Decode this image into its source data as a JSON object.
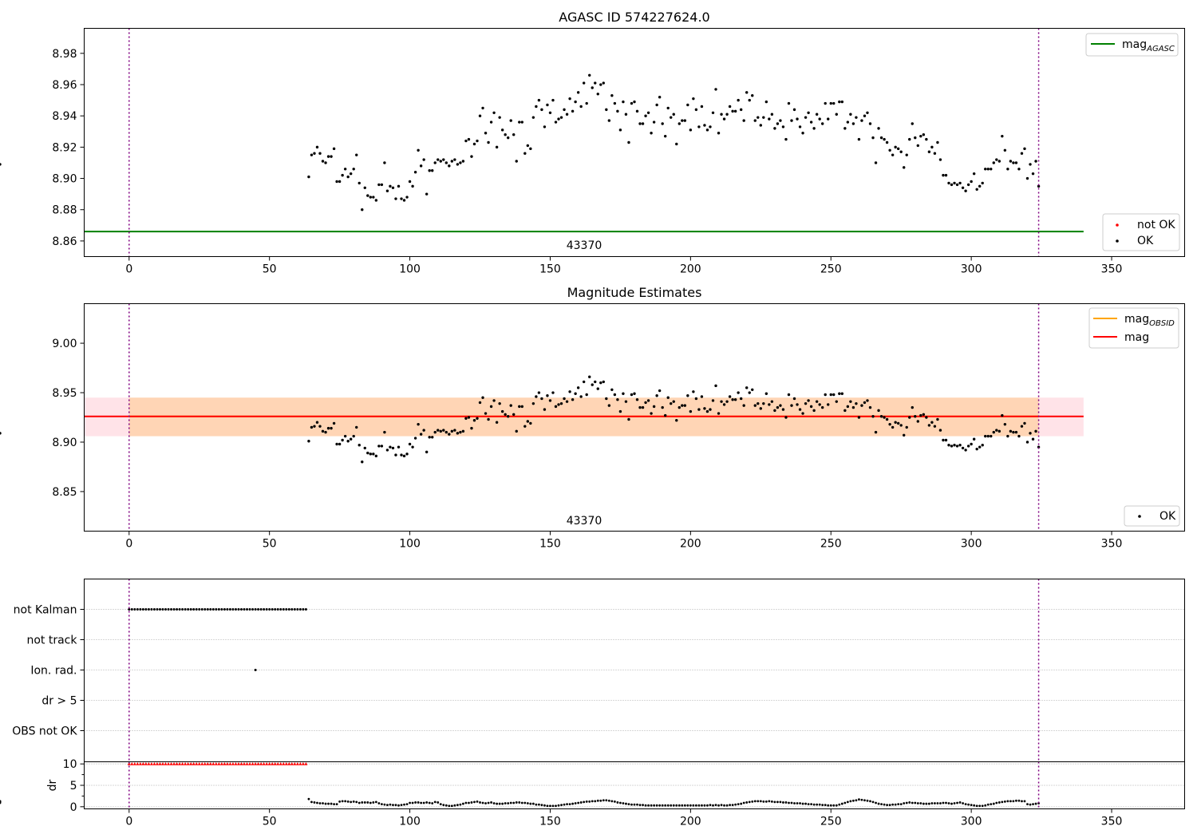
{
  "chart_data": [
    {
      "type": "scatter",
      "title": "AGASC ID 574227624.0",
      "xlim": [
        -16,
        376
      ],
      "ylim": [
        8.85,
        8.996
      ],
      "xticks": [
        0,
        50,
        100,
        150,
        200,
        250,
        300,
        350
      ],
      "yticks": [
        8.86,
        8.88,
        8.9,
        8.92,
        8.94,
        8.96,
        8.98
      ],
      "vlines": [
        0,
        324
      ],
      "hline": {
        "label": "mag_AGASC",
        "y": 8.866,
        "x_range": [
          -16,
          340
        ],
        "color": "#008000"
      },
      "annotation": "43370",
      "legend_top": [
        {
          "label": "mag",
          "subscript": "AGASC",
          "color": "#008000"
        }
      ],
      "legend_bottom": [
        {
          "label": "not OK",
          "color": "#ff0000"
        },
        {
          "label": "OK",
          "color": "#000000"
        }
      ],
      "series": [
        {
          "name": "OK",
          "x_start": 64,
          "x_end": 324,
          "dx": 1,
          "y": [
            8.901,
            8.915,
            8.916,
            8.92,
            8.916,
            8.911,
            8.91,
            8.914,
            8.914,
            8.919,
            8.898,
            8.898,
            8.902,
            8.906,
            8.901,
            8.903,
            8.906,
            8.915,
            8.897,
            8.88,
            8.894,
            8.889,
            8.888,
            8.888,
            8.886,
            8.896,
            8.896,
            8.91,
            8.892,
            8.895,
            8.894,
            8.887,
            8.895,
            8.887,
            8.886,
            8.888,
            8.898,
            8.895,
            8.904,
            8.918,
            8.908,
            8.912,
            8.89,
            8.905,
            8.905,
            8.91,
            8.912,
            8.911,
            8.912,
            8.91,
            8.908,
            8.911,
            8.912,
            8.909,
            8.91,
            8.911,
            8.924,
            8.925,
            8.914,
            8.922,
            8.924,
            8.94,
            8.945,
            8.929,
            8.923,
            8.936,
            8.942,
            8.92,
            8.939,
            8.931,
            8.928,
            8.926,
            8.937,
            8.928,
            8.911,
            8.936,
            8.936,
            8.916,
            8.921,
            8.919,
            8.939,
            8.946,
            8.95,
            8.944,
            8.933,
            8.947,
            8.942,
            8.95,
            8.936,
            8.938,
            8.939,
            8.944,
            8.941,
            8.951,
            8.943,
            8.949,
            8.955,
            8.946,
            8.961,
            8.948,
            8.966,
            8.958,
            8.961,
            8.954,
            8.96,
            8.961,
            8.944,
            8.937,
            8.953,
            8.948,
            8.943,
            8.931,
            8.949,
            8.941,
            8.923,
            8.948,
            8.949,
            8.943,
            8.935,
            8.935,
            8.94,
            8.942,
            8.929,
            8.936,
            8.947,
            8.952,
            8.935,
            8.927,
            8.945,
            8.939,
            8.941,
            8.922,
            8.935,
            8.937,
            8.937,
            8.947,
            8.931,
            8.951,
            8.944,
            8.933,
            8.946,
            8.934,
            8.931,
            8.933,
            8.942,
            8.957,
            8.929,
            8.941,
            8.938,
            8.941,
            8.946,
            8.943,
            8.943,
            8.95,
            8.944,
            8.937,
            8.955,
            8.95,
            8.953,
            8.937,
            8.939,
            8.934,
            8.939,
            8.949,
            8.938,
            8.941,
            8.932,
            8.935,
            8.937,
            8.933,
            8.925,
            8.948,
            8.937,
            8.944,
            8.938,
            8.933,
            8.929,
            8.939,
            8.942,
            8.936,
            8.932,
            8.941,
            8.938,
            8.935,
            8.948,
            8.938,
            8.948,
            8.948,
            8.941,
            8.949,
            8.949,
            8.932,
            8.936,
            8.941,
            8.935,
            8.939,
            8.925,
            8.937,
            8.94,
            8.942,
            8.935,
            8.926,
            8.91,
            8.932,
            8.926,
            8.925,
            8.923,
            8.918,
            8.915,
            8.92,
            8.919,
            8.917,
            8.907,
            8.915,
            8.925,
            8.935,
            8.926,
            8.921,
            8.927,
            8.928,
            8.925,
            8.917,
            8.92,
            8.916,
            8.923,
            8.912,
            8.902,
            8.902,
            8.897,
            8.896,
            8.897,
            8.896,
            8.897,
            8.894,
            8.892,
            8.896,
            8.898,
            8.903,
            8.893,
            8.895,
            8.897,
            8.906,
            8.906,
            8.906,
            8.91,
            8.912,
            8.911,
            8.927,
            8.918,
            8.906,
            8.911,
            8.91,
            8.91,
            8.906,
            8.916,
            8.919,
            8.9,
            8.909,
            8.903,
            8.911,
            8.895,
            8.909
          ]
        }
      ]
    },
    {
      "type": "scatter",
      "title": "Magnitude Estimates",
      "xlim": [
        -16,
        376
      ],
      "ylim": [
        8.81,
        9.04
      ],
      "xticks": [
        0,
        50,
        100,
        150,
        200,
        250,
        300,
        350
      ],
      "yticks": [
        8.85,
        8.9,
        8.95,
        9.0
      ],
      "vlines": [
        0,
        324
      ],
      "bands": [
        {
          "label": "mag band",
          "y0": 8.906,
          "y1": 8.945,
          "x_range": [
            -16,
            340
          ],
          "color": "#ffc0cb",
          "alpha": 0.45
        },
        {
          "label": "mag_OBSID band",
          "y0": 8.906,
          "y1": 8.945,
          "x_range": [
            0,
            324
          ],
          "color": "#ffa500",
          "alpha": 0.22
        }
      ],
      "hlines": [
        {
          "label": "mag_OBSID",
          "y": 8.926,
          "x_range": [
            0,
            324
          ],
          "color": "#ffa500"
        },
        {
          "label": "mag",
          "y": 8.926,
          "x_range": [
            -16,
            340
          ],
          "color": "#ff0000"
        }
      ],
      "annotation": "43370",
      "legend_top": [
        {
          "label": "mag",
          "subscript": "OBSID",
          "color": "#ffa500"
        },
        {
          "label": "mag",
          "subscript": "",
          "color": "#ff0000"
        }
      ],
      "legend_bottom": [
        {
          "label": "OK",
          "color": "#000000"
        }
      ],
      "series": [
        {
          "name": "OK",
          "same_as": "AGASC ID 574227624.0"
        }
      ]
    },
    {
      "type": "scatter",
      "title": "",
      "xlim": [
        -16,
        376
      ],
      "xticks": [
        0,
        50,
        100,
        150,
        200,
        250,
        300,
        350
      ],
      "vlines": [
        0,
        324
      ],
      "categories": [
        "not Kalman",
        "not track",
        "Ion. rad.",
        "dr > 5",
        "OBS not OK"
      ],
      "flags": [
        {
          "category": "not Kalman",
          "x_start": 0,
          "x_end": 63,
          "dx": 1
        },
        {
          "category": "Ion. rad.",
          "x": [
            45
          ]
        }
      ]
    },
    {
      "type": "scatter",
      "title": "",
      "ylabel": "dr",
      "xlim": [
        -16,
        376
      ],
      "ylim": [
        -0.5,
        10.5
      ],
      "xticks": [
        0,
        50,
        100,
        150,
        200,
        250,
        300,
        350
      ],
      "yticks": [
        0,
        5,
        10
      ],
      "vlines": [
        0,
        324
      ],
      "series": [
        {
          "name": "not OK",
          "color": "#ff0000",
          "x_start": 0,
          "x_end": 63,
          "dx": 1,
          "y_const": 10,
          "marker": "triangle"
        },
        {
          "name": "OK",
          "color": "#000000",
          "x_start": 64,
          "x_end": 324,
          "dx": 1,
          "y": [
            1.8,
            1.1,
            1.0,
            0.9,
            0.8,
            0.8,
            0.7,
            0.7,
            0.7,
            0.6,
            0.6,
            1.2,
            1.3,
            1.3,
            1.2,
            1.1,
            1.2,
            1.1,
            0.9,
            1.0,
            1.0,
            1.0,
            0.9,
            1.0,
            1.1,
            0.8,
            0.6,
            0.5,
            0.4,
            0.5,
            0.4,
            0.4,
            0.3,
            0.4,
            0.5,
            0.6,
            0.9,
            0.9,
            1.0,
            1.0,
            0.9,
            0.9,
            1.0,
            0.9,
            0.8,
            1.1,
            1.0,
            0.6,
            0.4,
            0.3,
            0.2,
            0.2,
            0.3,
            0.4,
            0.5,
            0.7,
            0.9,
            0.9,
            1.0,
            1.1,
            1.2,
            1.0,
            0.9,
            0.8,
            0.9,
            1.0,
            0.8,
            0.7,
            0.7,
            0.7,
            0.8,
            0.8,
            0.9,
            0.9,
            1.0,
            1.0,
            0.9,
            0.9,
            0.8,
            0.7,
            0.7,
            0.5,
            0.5,
            0.4,
            0.3,
            0.2,
            0.2,
            0.2,
            0.2,
            0.3,
            0.4,
            0.5,
            0.6,
            0.6,
            0.7,
            0.8,
            0.9,
            1.0,
            1.1,
            1.2,
            1.2,
            1.3,
            1.3,
            1.4,
            1.4,
            1.5,
            1.5,
            1.4,
            1.3,
            1.2,
            1.0,
            0.9,
            0.8,
            0.7,
            0.6,
            0.5,
            0.5,
            0.5,
            0.4,
            0.4,
            0.3,
            0.3,
            0.3,
            0.3,
            0.3,
            0.3,
            0.3,
            0.3,
            0.3,
            0.3,
            0.3,
            0.3,
            0.3,
            0.3,
            0.3,
            0.3,
            0.3,
            0.3,
            0.3,
            0.3,
            0.3,
            0.3,
            0.3,
            0.4,
            0.3,
            0.4,
            0.3,
            0.4,
            0.3,
            0.3,
            0.4,
            0.4,
            0.5,
            0.6,
            0.7,
            0.9,
            1.0,
            1.1,
            1.2,
            1.3,
            1.3,
            1.3,
            1.2,
            1.2,
            1.3,
            1.2,
            1.1,
            1.1,
            1.1,
            1.0,
            1.0,
            0.9,
            0.9,
            0.8,
            0.8,
            0.8,
            0.7,
            0.7,
            0.6,
            0.6,
            0.5,
            0.5,
            0.5,
            0.4,
            0.4,
            0.3,
            0.3,
            0.3,
            0.3,
            0.5,
            0.7,
            0.9,
            1.1,
            1.3,
            1.4,
            1.5,
            1.7,
            1.6,
            1.5,
            1.4,
            1.3,
            1.1,
            0.9,
            0.7,
            0.6,
            0.5,
            0.4,
            0.4,
            0.5,
            0.5,
            0.6,
            0.6,
            0.8,
            0.9,
            1.0,
            0.9,
            0.9,
            0.8,
            0.8,
            0.7,
            0.7,
            0.7,
            0.8,
            0.8,
            0.8,
            0.8,
            0.9,
            0.9,
            0.8,
            0.7,
            0.8,
            0.9,
            1.0,
            0.8,
            0.6,
            0.5,
            0.4,
            0.3,
            0.2,
            0.2,
            0.2,
            0.3,
            0.5,
            0.6,
            0.7,
            0.9,
            1.0,
            1.1,
            1.2,
            1.3,
            1.3,
            1.3,
            1.4,
            1.4,
            1.3,
            1.3,
            0.6,
            0.5,
            0.6,
            0.7,
            0.8,
            0.9,
            1.0,
            1.1,
            1.2,
            1.3,
            1.2,
            1.3
          ]
        }
      ]
    }
  ]
}
